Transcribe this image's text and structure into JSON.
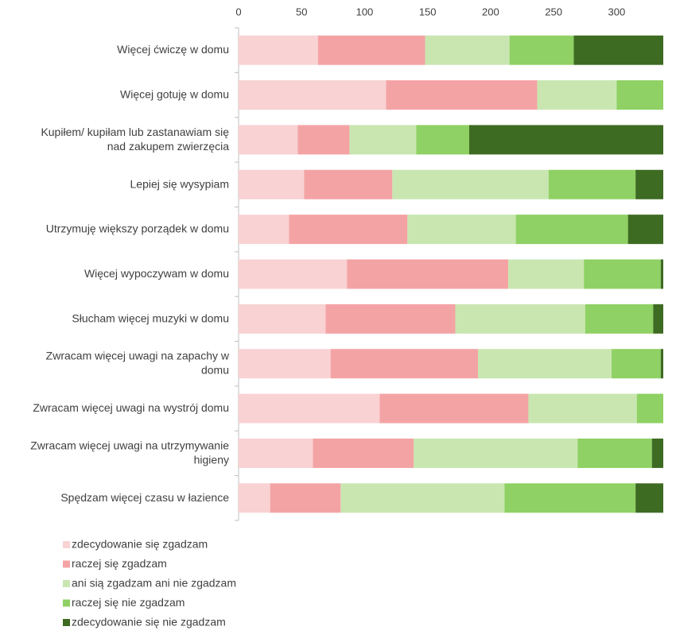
{
  "chart_data": {
    "type": "bar",
    "orientation": "horizontal",
    "stacked": true,
    "categories": [
      [
        "Więcej ćwiczę w domu"
      ],
      [
        "Więcej gotuję w domu"
      ],
      [
        "Kupiłem/ kupiłam lub zastanawiam się",
        "nad zakupem zwierzęcia"
      ],
      [
        "Lepiej się wysypiam"
      ],
      [
        "Utrzymuję większy porządek w domu"
      ],
      [
        "Więcej wypoczywam w domu"
      ],
      [
        "Słucham więcej muzyki w domu"
      ],
      [
        "Zwracam więcej uwagi na zapachy w",
        "domu"
      ],
      [
        "Zwracam więcej uwagi na wystrój domu"
      ],
      [
        "Zwracam więcej uwagi na utrzymywanie",
        "higieny"
      ],
      [
        "Spędzam więcej czasu w łazience"
      ]
    ],
    "series": [
      {
        "name": "zdecydowanie się zgadzam",
        "color": "#f9d2d3",
        "values": [
          63,
          117,
          47,
          52,
          40,
          86,
          69,
          73,
          112,
          59,
          25
        ]
      },
      {
        "name": "raczej się zgadzam",
        "color": "#f4a3a5",
        "values": [
          85,
          120,
          41,
          70,
          94,
          128,
          103,
          117,
          118,
          80,
          56
        ]
      },
      {
        "name": "ani sią zgadzam ani nie zgadzam",
        "color": "#c9e6b0",
        "values": [
          67,
          63,
          53,
          124,
          86,
          60,
          103,
          106,
          86,
          130,
          130
        ]
      },
      {
        "name": "raczej się nie zgadzam",
        "color": "#8fd164",
        "values": [
          51,
          37,
          42,
          69,
          89,
          61,
          54,
          39,
          21,
          59,
          104
        ]
      },
      {
        "name": "zdecydowanie się nie zgadzam",
        "color": "#3e6b22",
        "values": [
          71,
          0,
          154,
          22,
          28,
          2,
          8,
          2,
          0,
          9,
          22
        ]
      }
    ],
    "xlim": [
      0,
      337
    ],
    "xticks": [
      0,
      50,
      100,
      150,
      200,
      250,
      300
    ],
    "legend": "bottom-left"
  }
}
